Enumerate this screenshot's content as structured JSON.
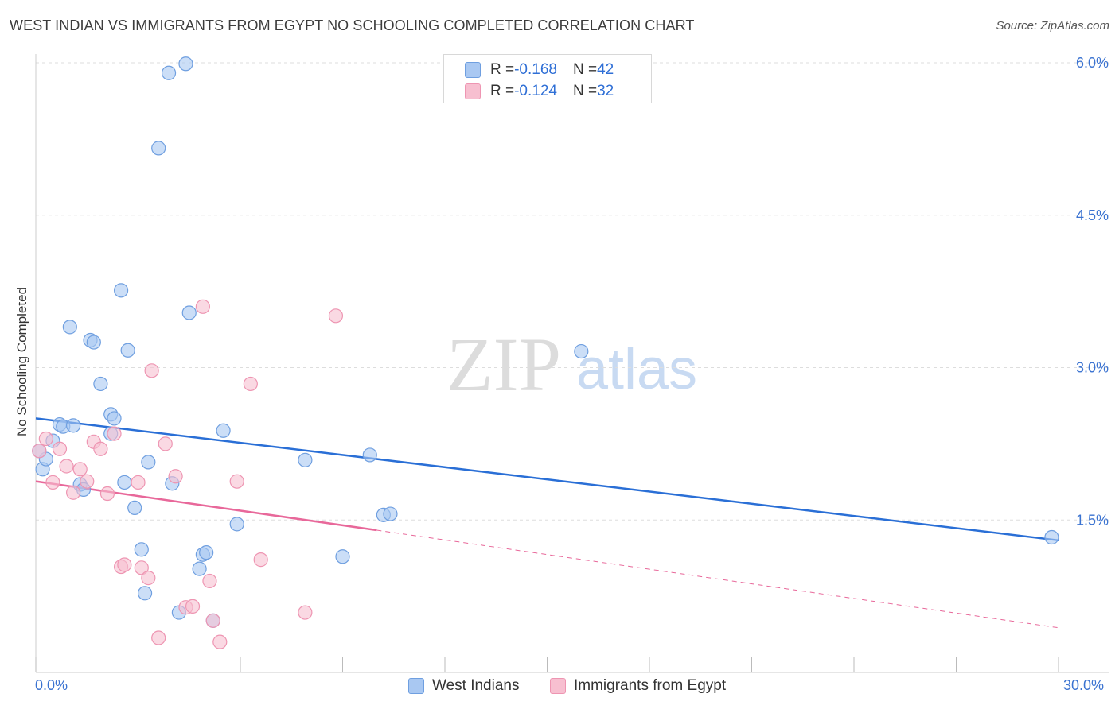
{
  "header": {
    "title": "WEST INDIAN VS IMMIGRANTS FROM EGYPT NO SCHOOLING COMPLETED CORRELATION CHART",
    "source": "Source: ZipAtlas.com"
  },
  "watermark": {
    "zip": "ZIP",
    "atlas": "atlas"
  },
  "legend": {
    "rows": [
      {
        "r_label": "R = ",
        "r_value": "-0.168",
        "n_label": "N = ",
        "n_value": "42"
      },
      {
        "r_label": "R = ",
        "r_value": "-0.124",
        "n_label": "N = ",
        "n_value": "32"
      }
    ]
  },
  "bottom_legend": {
    "series1": "West Indians",
    "series2": "Immigrants from Egypt"
  },
  "x_axis": {
    "min_label": "0.0%",
    "max_label": "30.0%"
  },
  "colors": {
    "blue_fill": "#a9c8f2",
    "blue_stroke": "#6f9fe0",
    "blue_line": "#2a6fd6",
    "pink_fill": "#f7bfd0",
    "pink_stroke": "#ee95b2",
    "pink_line": "#e8689a",
    "grid": "#dddddd",
    "tick_label": "#3b73d1"
  },
  "chart_data": {
    "type": "scatter",
    "ylabel": "No Schooling Completed",
    "xlim": [
      0,
      30
    ],
    "ylim": [
      0,
      6.0
    ],
    "y_ticks": [
      {
        "value": 1.5,
        "label": "1.5%"
      },
      {
        "value": 3.0,
        "label": "3.0%"
      },
      {
        "value": 4.5,
        "label": "4.5%"
      },
      {
        "value": 6.0,
        "label": "6.0%"
      }
    ],
    "grid": true,
    "series": [
      {
        "name": "West Indians",
        "color": "blue",
        "trend": {
          "x0": 0,
          "y0": 2.5,
          "x1": 30,
          "y1": 1.3
        },
        "points": [
          [
            0.2,
            2.0
          ],
          [
            0.3,
            2.1
          ],
          [
            0.5,
            2.28
          ],
          [
            0.7,
            2.44
          ],
          [
            0.8,
            2.42
          ],
          [
            1.0,
            3.4
          ],
          [
            1.1,
            2.43
          ],
          [
            1.3,
            1.85
          ],
          [
            1.4,
            1.8
          ],
          [
            1.6,
            3.27
          ],
          [
            1.7,
            3.25
          ],
          [
            1.9,
            2.84
          ],
          [
            2.2,
            2.35
          ],
          [
            2.2,
            2.54
          ],
          [
            2.3,
            2.5
          ],
          [
            2.5,
            3.76
          ],
          [
            2.6,
            1.87
          ],
          [
            2.7,
            3.17
          ],
          [
            2.9,
            1.62
          ],
          [
            3.1,
            1.21
          ],
          [
            3.2,
            0.78
          ],
          [
            3.3,
            2.07
          ],
          [
            3.6,
            5.16
          ],
          [
            3.9,
            5.9
          ],
          [
            4.0,
            1.86
          ],
          [
            4.2,
            0.59
          ],
          [
            4.4,
            5.99
          ],
          [
            4.5,
            3.54
          ],
          [
            4.8,
            1.02
          ],
          [
            4.9,
            1.16
          ],
          [
            5.0,
            1.18
          ],
          [
            5.2,
            0.51
          ],
          [
            5.5,
            2.38
          ],
          [
            5.9,
            1.46
          ],
          [
            7.9,
            2.09
          ],
          [
            9.0,
            1.14
          ],
          [
            9.8,
            2.14
          ],
          [
            10.2,
            1.55
          ],
          [
            10.4,
            1.56
          ],
          [
            16.0,
            3.16
          ],
          [
            29.8,
            1.33
          ],
          [
            0.1,
            2.18
          ]
        ]
      },
      {
        "name": "Immigrants from Egypt",
        "color": "pink",
        "trend": {
          "x0": 0,
          "y0": 1.88,
          "x1": 10.0,
          "y1": 1.4
        },
        "trend_ext": {
          "x0": 10.0,
          "y0": 1.4,
          "x1": 30,
          "y1": 0.44
        },
        "points": [
          [
            0.1,
            2.18
          ],
          [
            0.3,
            2.3
          ],
          [
            0.5,
            1.87
          ],
          [
            0.7,
            2.2
          ],
          [
            0.9,
            2.03
          ],
          [
            1.1,
            1.77
          ],
          [
            1.3,
            2.0
          ],
          [
            1.5,
            1.88
          ],
          [
            1.7,
            2.27
          ],
          [
            1.9,
            2.2
          ],
          [
            2.1,
            1.76
          ],
          [
            2.3,
            2.35
          ],
          [
            2.5,
            1.04
          ],
          [
            2.6,
            1.06
          ],
          [
            3.0,
            1.87
          ],
          [
            3.1,
            1.03
          ],
          [
            3.3,
            0.93
          ],
          [
            3.4,
            2.97
          ],
          [
            3.6,
            0.34
          ],
          [
            3.8,
            2.25
          ],
          [
            4.1,
            1.93
          ],
          [
            4.4,
            0.64
          ],
          [
            4.6,
            0.65
          ],
          [
            4.9,
            3.6
          ],
          [
            5.1,
            0.9
          ],
          [
            5.2,
            0.51
          ],
          [
            5.4,
            0.3
          ],
          [
            5.9,
            1.88
          ],
          [
            6.3,
            2.84
          ],
          [
            6.6,
            1.11
          ],
          [
            7.9,
            0.59
          ],
          [
            8.8,
            3.51
          ]
        ]
      }
    ]
  }
}
